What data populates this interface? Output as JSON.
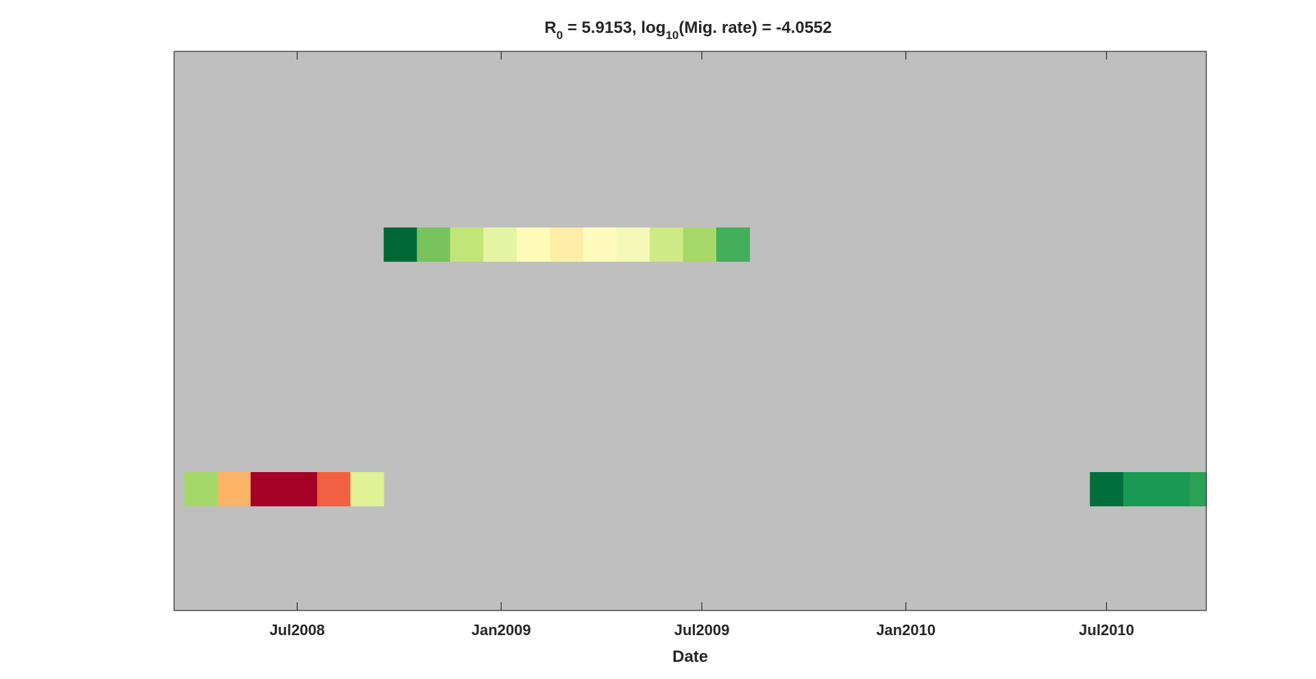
{
  "chart_data": {
    "type": "heatmap",
    "title": {
      "r_base": "R",
      "r_sub": "0",
      "r_value": " = 5.9153, ",
      "log_base": "log",
      "log_sub": "10",
      "log_value": "(Mig. rate) = -4.0552"
    },
    "xlabel": "Date",
    "ylabel": "",
    "xlim": [
      "2008-03-12",
      "2010-09-29"
    ],
    "x_ticks": [
      {
        "date": "2008-07-01",
        "label": "Jul2008"
      },
      {
        "date": "2009-01-01",
        "label": "Jan2009"
      },
      {
        "date": "2009-07-01",
        "label": "Jul2009"
      },
      {
        "date": "2010-01-01",
        "label": "Jan2010"
      },
      {
        "date": "2010-07-01",
        "label": "Jul2010"
      }
    ],
    "y_tick_labels": [],
    "rows": 2,
    "grid": false,
    "background_color": "#bfbfbf",
    "cell_days": 30,
    "series": [
      {
        "row": 1,
        "cells": [
          {
            "start": "2008-09-17",
            "color": "#006837"
          },
          {
            "start": "2008-10-17",
            "color": "#78c35c"
          },
          {
            "start": "2008-11-16",
            "color": "#c2e57a"
          },
          {
            "start": "2008-12-16",
            "color": "#e5f4a2"
          },
          {
            "start": "2009-01-15",
            "color": "#fefab8"
          },
          {
            "start": "2009-02-14",
            "color": "#fdeda6"
          },
          {
            "start": "2009-03-16",
            "color": "#fefbbd"
          },
          {
            "start": "2009-04-15",
            "color": "#f4f9b8"
          },
          {
            "start": "2009-05-15",
            "color": "#cdea86"
          },
          {
            "start": "2009-06-14",
            "color": "#a6d86a"
          },
          {
            "start": "2009-07-14",
            "color": "#44ae5a"
          }
        ]
      },
      {
        "row": 2,
        "cells": [
          {
            "start": "2008-03-21",
            "color": "#a4d96a"
          },
          {
            "start": "2008-04-20",
            "color": "#fbb367"
          },
          {
            "start": "2008-05-20",
            "color": "#a50026"
          },
          {
            "start": "2008-06-19",
            "color": "#a50026"
          },
          {
            "start": "2008-07-19",
            "color": "#f16040"
          },
          {
            "start": "2008-08-18",
            "color": "#e0f196"
          },
          {
            "start": "2010-06-16",
            "color": "#006f3d"
          },
          {
            "start": "2010-07-16",
            "color": "#189a52"
          },
          {
            "start": "2010-08-15",
            "color": "#189a52"
          },
          {
            "start": "2010-09-14",
            "color": "#2aa157"
          }
        ]
      }
    ]
  }
}
